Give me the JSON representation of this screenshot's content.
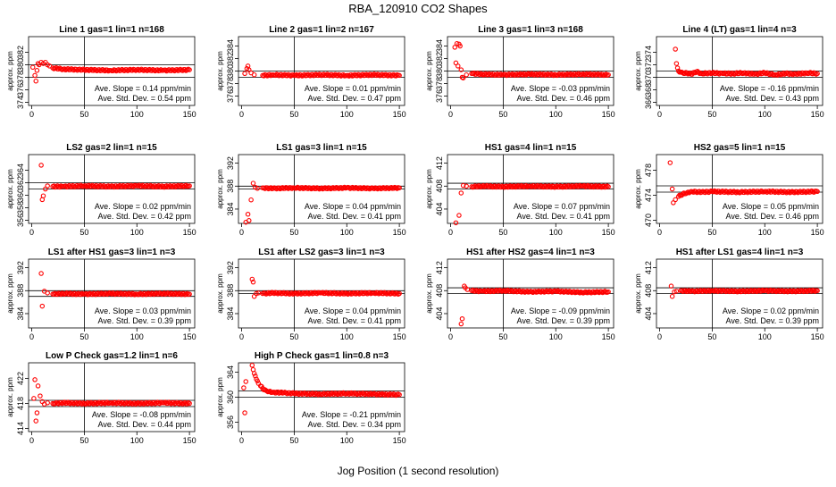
{
  "title": "RBA_120910  CO2 Shapes",
  "xlabel": "Jog Position (1 second resolution)",
  "ylabel": "approx. ppm",
  "colors": {
    "points": "#ff0000",
    "lines": "#000000"
  },
  "chart_data": [
    {
      "type": "scatter",
      "title": "Line 1 gas=1 lin=1 n=168",
      "ylim": [
        373.5,
        384.5
      ],
      "yticks": [
        374,
        376,
        378,
        380,
        382
      ],
      "xlim": [
        -3,
        155
      ],
      "xticks": [
        0,
        50,
        100,
        150
      ],
      "hlines": [
        380.0,
        378.0
      ],
      "vline": 50,
      "slope": "Ave. Slope =  0.14  ppm/min",
      "sd": "Ave. Std. Dev. =  0.54  ppm",
      "series": [
        {
          "name": "",
          "x": [
            1,
            3,
            4,
            5,
            6,
            7,
            9,
            11,
            13,
            15,
            17,
            20,
            30,
            50,
            75,
            100,
            125,
            150
          ],
          "y": [
            379.6,
            378.3,
            377.4,
            379.1,
            380.2,
            380.0,
            380.4,
            380.2,
            380.4,
            380.0,
            379.8,
            379.5,
            379.3,
            379.2,
            379.1,
            379.2,
            379.1,
            379.2
          ]
        }
      ]
    },
    {
      "type": "scatter",
      "title": "Line 2 gas=1 lin=2 n=167",
      "ylim": [
        374.5,
        385.5
      ],
      "yticks": [
        376,
        378,
        380,
        382,
        384
      ],
      "xlim": [
        -3,
        155
      ],
      "xticks": [
        0,
        50,
        100,
        150
      ],
      "hlines": [
        380.0,
        379.0
      ],
      "vline": 50,
      "slope": "Ave. Slope =  0.01  ppm/min",
      "sd": "Ave. Std. Dev. =  0.47  ppm",
      "series": [
        {
          "name": "",
          "x": [
            3,
            5,
            6,
            7,
            9,
            12,
            20,
            30,
            50,
            75,
            100,
            125,
            150
          ],
          "y": [
            379.6,
            380.4,
            380.8,
            380.2,
            379.7,
            379.4,
            379.3,
            379.4,
            379.3,
            379.4,
            379.3,
            379.4,
            379.3
          ]
        }
      ]
    },
    {
      "type": "scatter",
      "title": "Line 3 gas=1 lin=3 n=168",
      "ylim": [
        374.5,
        385.5
      ],
      "yticks": [
        376,
        378,
        380,
        382,
        384
      ],
      "xlim": [
        -3,
        155
      ],
      "xticks": [
        0,
        50,
        100,
        150
      ],
      "hlines": [
        380.0,
        379.0
      ],
      "vline": 50,
      "slope": "Ave. Slope = -0.03  ppm/min",
      "sd": "Ave. Std. Dev. =  0.46  ppm",
      "series": [
        {
          "name": "",
          "x": [
            4,
            5,
            6,
            7,
            8,
            9,
            10,
            11,
            12,
            15,
            20,
            30,
            50,
            75,
            100,
            125,
            150
          ],
          "y": [
            383.8,
            381.3,
            384.4,
            380.8,
            384.3,
            384.0,
            380.2,
            379.0,
            378.9,
            379.4,
            379.6,
            379.5,
            379.4,
            379.5,
            379.4,
            379.5,
            379.4
          ]
        }
      ]
    },
    {
      "type": "scatter",
      "title": "Line 4 (LT) gas=1 lin=4 n=3",
      "ylim": [
        365.5,
        376.5
      ],
      "yticks": [
        366,
        368,
        370,
        372,
        374
      ],
      "xlim": [
        -3,
        155
      ],
      "xticks": [
        0,
        50,
        100,
        150
      ],
      "hlines": [
        371.0,
        370.0
      ],
      "vline": 50,
      "slope": "Ave. Slope = -0.16  ppm/min",
      "sd": "Ave. Std. Dev. =  0.43  ppm",
      "series": [
        {
          "name": "",
          "x": [
            15,
            16,
            17,
            18,
            20,
            23,
            26,
            30,
            35,
            40,
            50,
            60,
            70,
            80,
            90,
            100,
            110,
            120,
            130,
            140,
            150
          ],
          "y": [
            374.5,
            372.2,
            371.5,
            371.0,
            370.8,
            370.6,
            370.7,
            370.5,
            370.9,
            370.6,
            370.7,
            370.6,
            370.6,
            370.7,
            370.5,
            370.7,
            370.4,
            370.6,
            370.5,
            370.7,
            370.6
          ]
        }
      ]
    },
    {
      "type": "scatter",
      "title": "LS2 gas=2 lin=1 n=15",
      "ylim": [
        355.5,
        366.5
      ],
      "yticks": [
        356,
        358,
        360,
        362,
        364
      ],
      "xlim": [
        -3,
        155
      ],
      "xticks": [
        0,
        50,
        100,
        150
      ],
      "hlines": [
        362.0,
        361.0
      ],
      "vline": 50,
      "slope": "Ave. Slope =  0.02  ppm/min",
      "sd": "Ave. Std. Dev. =  0.42  ppm",
      "series": [
        {
          "name": "",
          "x": [
            9,
            10,
            11,
            13,
            15,
            20,
            30,
            50,
            75,
            100,
            125,
            150
          ],
          "y": [
            364.8,
            359.3,
            359.9,
            361.0,
            361.5,
            361.4,
            361.4,
            361.5,
            361.4,
            361.5,
            361.4,
            361.5
          ]
        }
      ]
    },
    {
      "type": "scatter",
      "title": "LS1 gas=3 lin=1 n=15",
      "ylim": [
        381.5,
        393.5
      ],
      "yticks": [
        384,
        388,
        392
      ],
      "xlim": [
        -3,
        155
      ],
      "xticks": [
        0,
        50,
        100,
        150
      ],
      "hlines": [
        388.0,
        387.5
      ],
      "vline": 50,
      "slope": "Ave. Slope =  0.04  ppm/min",
      "sd": "Ave. Std. Dev. =  0.41  ppm",
      "series": [
        {
          "name": "",
          "x": [
            4,
            6,
            7,
            9,
            11,
            13,
            15,
            20,
            30,
            50,
            75,
            100,
            125,
            150
          ],
          "y": [
            381.7,
            383.1,
            382.0,
            385.6,
            388.5,
            387.8,
            387.6,
            387.7,
            387.6,
            387.7,
            387.6,
            387.7,
            387.6,
            387.7
          ]
        }
      ]
    },
    {
      "type": "scatter",
      "title": "HS1 gas=4 lin=1 n=15",
      "ylim": [
        401.5,
        413.5
      ],
      "yticks": [
        404,
        408,
        412
      ],
      "xlim": [
        -3,
        155
      ],
      "xticks": [
        0,
        50,
        100,
        150
      ],
      "hlines": [
        408.5,
        407.5
      ],
      "vline": 50,
      "slope": "Ave. Slope =  0.07  ppm/min",
      "sd": "Ave. Std. Dev. =  0.41  ppm",
      "series": [
        {
          "name": "",
          "x": [
            5,
            8,
            10,
            12,
            15,
            20,
            30,
            50,
            75,
            100,
            125,
            150
          ],
          "y": [
            401.6,
            402.9,
            406.8,
            408.1,
            408.0,
            407.9,
            408.0,
            407.9,
            408.0,
            407.9,
            408.0,
            407.9
          ]
        }
      ]
    },
    {
      "type": "scatter",
      "title": "HS2 gas=5 lin=1 n=15",
      "ylim": [
        469.5,
        480.5
      ],
      "yticks": [
        470,
        474,
        478
      ],
      "xlim": [
        -3,
        155
      ],
      "xticks": [
        0,
        50,
        100,
        150
      ],
      "hlines": [
        475.5,
        474.5
      ],
      "vline": 50,
      "slope": "Ave. Slope =  0.05  ppm/min",
      "sd": "Ave. Std. Dev. =  0.46  ppm",
      "series": [
        {
          "name": "",
          "x": [
            10,
            12,
            13,
            15,
            18,
            22,
            26,
            30,
            40,
            50,
            75,
            100,
            125,
            150
          ],
          "y": [
            479.2,
            475.0,
            472.8,
            473.3,
            473.8,
            474.2,
            474.4,
            474.6,
            474.5,
            474.6,
            474.5,
            474.6,
            474.5,
            474.6
          ]
        }
      ]
    },
    {
      "type": "scatter",
      "title": "LS1 after HS1 gas=3 lin=1 n=3",
      "ylim": [
        381.5,
        393.5
      ],
      "yticks": [
        384,
        388,
        392
      ],
      "xlim": [
        -3,
        155
      ],
      "xticks": [
        0,
        50,
        100,
        150
      ],
      "hlines": [
        388.0,
        387.0
      ],
      "vline": 50,
      "slope": "Ave. Slope =  0.03  ppm/min",
      "sd": "Ave. Std. Dev. =  0.39  ppm",
      "series": [
        {
          "name": "",
          "x": [
            9,
            10,
            12,
            15,
            20,
            30,
            50,
            75,
            100,
            125,
            150
          ],
          "y": [
            391.0,
            385.3,
            387.9,
            387.6,
            387.4,
            387.5,
            387.4,
            387.5,
            387.4,
            387.5,
            387.4
          ]
        }
      ]
    },
    {
      "type": "scatter",
      "title": "LS1 after LS2 gas=3 lin=1 n=3",
      "ylim": [
        381.5,
        393.5
      ],
      "yticks": [
        384,
        388,
        392
      ],
      "xlim": [
        -3,
        155
      ],
      "xticks": [
        0,
        50,
        100,
        150
      ],
      "hlines": [
        388.0,
        387.5
      ],
      "vline": 50,
      "slope": "Ave. Slope =  0.04  ppm/min",
      "sd": "Ave. Std. Dev. =  0.41  ppm",
      "series": [
        {
          "name": "",
          "x": [
            10,
            11,
            12,
            14,
            16,
            20,
            30,
            50,
            75,
            100,
            125,
            150
          ],
          "y": [
            390.0,
            389.5,
            387.0,
            387.5,
            387.6,
            387.5,
            387.6,
            387.5,
            387.6,
            387.5,
            387.6,
            387.5
          ]
        }
      ]
    },
    {
      "type": "scatter",
      "title": "HS1 after HS2 gas=4 lin=1 n=3",
      "ylim": [
        401.5,
        413.5
      ],
      "yticks": [
        404,
        408,
        412
      ],
      "xlim": [
        -3,
        155
      ],
      "xticks": [
        0,
        50,
        100,
        150
      ],
      "hlines": [
        408.5,
        407.5
      ],
      "vline": 50,
      "slope": "Ave. Slope = -0.09  ppm/min",
      "sd": "Ave. Std. Dev. =  0.39  ppm",
      "series": [
        {
          "name": "",
          "x": [
            10,
            11,
            13,
            14,
            16,
            20,
            30,
            50,
            75,
            100,
            125,
            150
          ],
          "y": [
            402.2,
            403.1,
            408.8,
            408.5,
            408.2,
            408.0,
            407.9,
            408.0,
            407.8,
            407.9,
            407.7,
            407.8
          ]
        }
      ]
    },
    {
      "type": "scatter",
      "title": "HS1 after LS1 gas=4 lin=1 n=3",
      "ylim": [
        401.5,
        413.5
      ],
      "yticks": [
        404,
        408,
        412
      ],
      "xlim": [
        -3,
        155
      ],
      "xticks": [
        0,
        50,
        100,
        150
      ],
      "hlines": [
        408.5,
        407.5
      ],
      "vline": 50,
      "slope": "Ave. Slope =  0.02  ppm/min",
      "sd": "Ave. Std. Dev. =  0.39  ppm",
      "series": [
        {
          "name": "",
          "x": [
            11,
            12,
            14,
            16,
            20,
            30,
            50,
            75,
            100,
            125,
            150
          ],
          "y": [
            408.8,
            407.0,
            407.8,
            407.9,
            408.0,
            407.9,
            408.0,
            407.9,
            408.0,
            407.9,
            408.0
          ]
        }
      ]
    },
    {
      "type": "scatter",
      "title": "Low P Check gas=1.2 lin=1 n=6",
      "ylim": [
        413.5,
        424.5
      ],
      "yticks": [
        414,
        418,
        422
      ],
      "xlim": [
        -3,
        155
      ],
      "xticks": [
        0,
        50,
        100,
        150
      ],
      "hlines": [
        418.5,
        417.5
      ],
      "vline": 50,
      "slope": "Ave. Slope = -0.08  ppm/min",
      "sd": "Ave. Std. Dev. =  0.44  ppm",
      "series": [
        {
          "name": "",
          "x": [
            2,
            3,
            4,
            5,
            6,
            8,
            10,
            12,
            15,
            20,
            30,
            50,
            75,
            100,
            125,
            150
          ],
          "y": [
            418.8,
            421.8,
            415.2,
            416.5,
            420.8,
            419.2,
            418.3,
            417.9,
            418.1,
            418.0,
            418.1,
            418.0,
            418.1,
            418.0,
            418.1,
            418.0
          ]
        }
      ]
    },
    {
      "type": "scatter",
      "title": "High P Check gas=1 lin=0.8 n=3",
      "ylim": [
        354.5,
        365.5
      ],
      "yticks": [
        356,
        360,
        364
      ],
      "xlim": [
        -3,
        155
      ],
      "xticks": [
        0,
        50,
        100,
        150
      ],
      "hlines": [
        361.0,
        360.0
      ],
      "vline": 50,
      "slope": "Ave. Slope = -0.21  ppm/min",
      "sd": "Ave. Std. Dev. =  0.34  ppm",
      "series": [
        {
          "name": "",
          "x": [
            2,
            3,
            4,
            10,
            11,
            12,
            13,
            14,
            15,
            16,
            18,
            20,
            23,
            26,
            30,
            40,
            50,
            75,
            100,
            125,
            150
          ],
          "y": [
            361.5,
            357.5,
            362.5,
            365.1,
            364.4,
            363.8,
            363.4,
            362.9,
            362.6,
            362.2,
            361.8,
            361.4,
            361.1,
            360.9,
            360.8,
            360.7,
            360.6,
            360.5,
            360.6,
            360.5,
            360.4
          ]
        }
      ]
    }
  ]
}
